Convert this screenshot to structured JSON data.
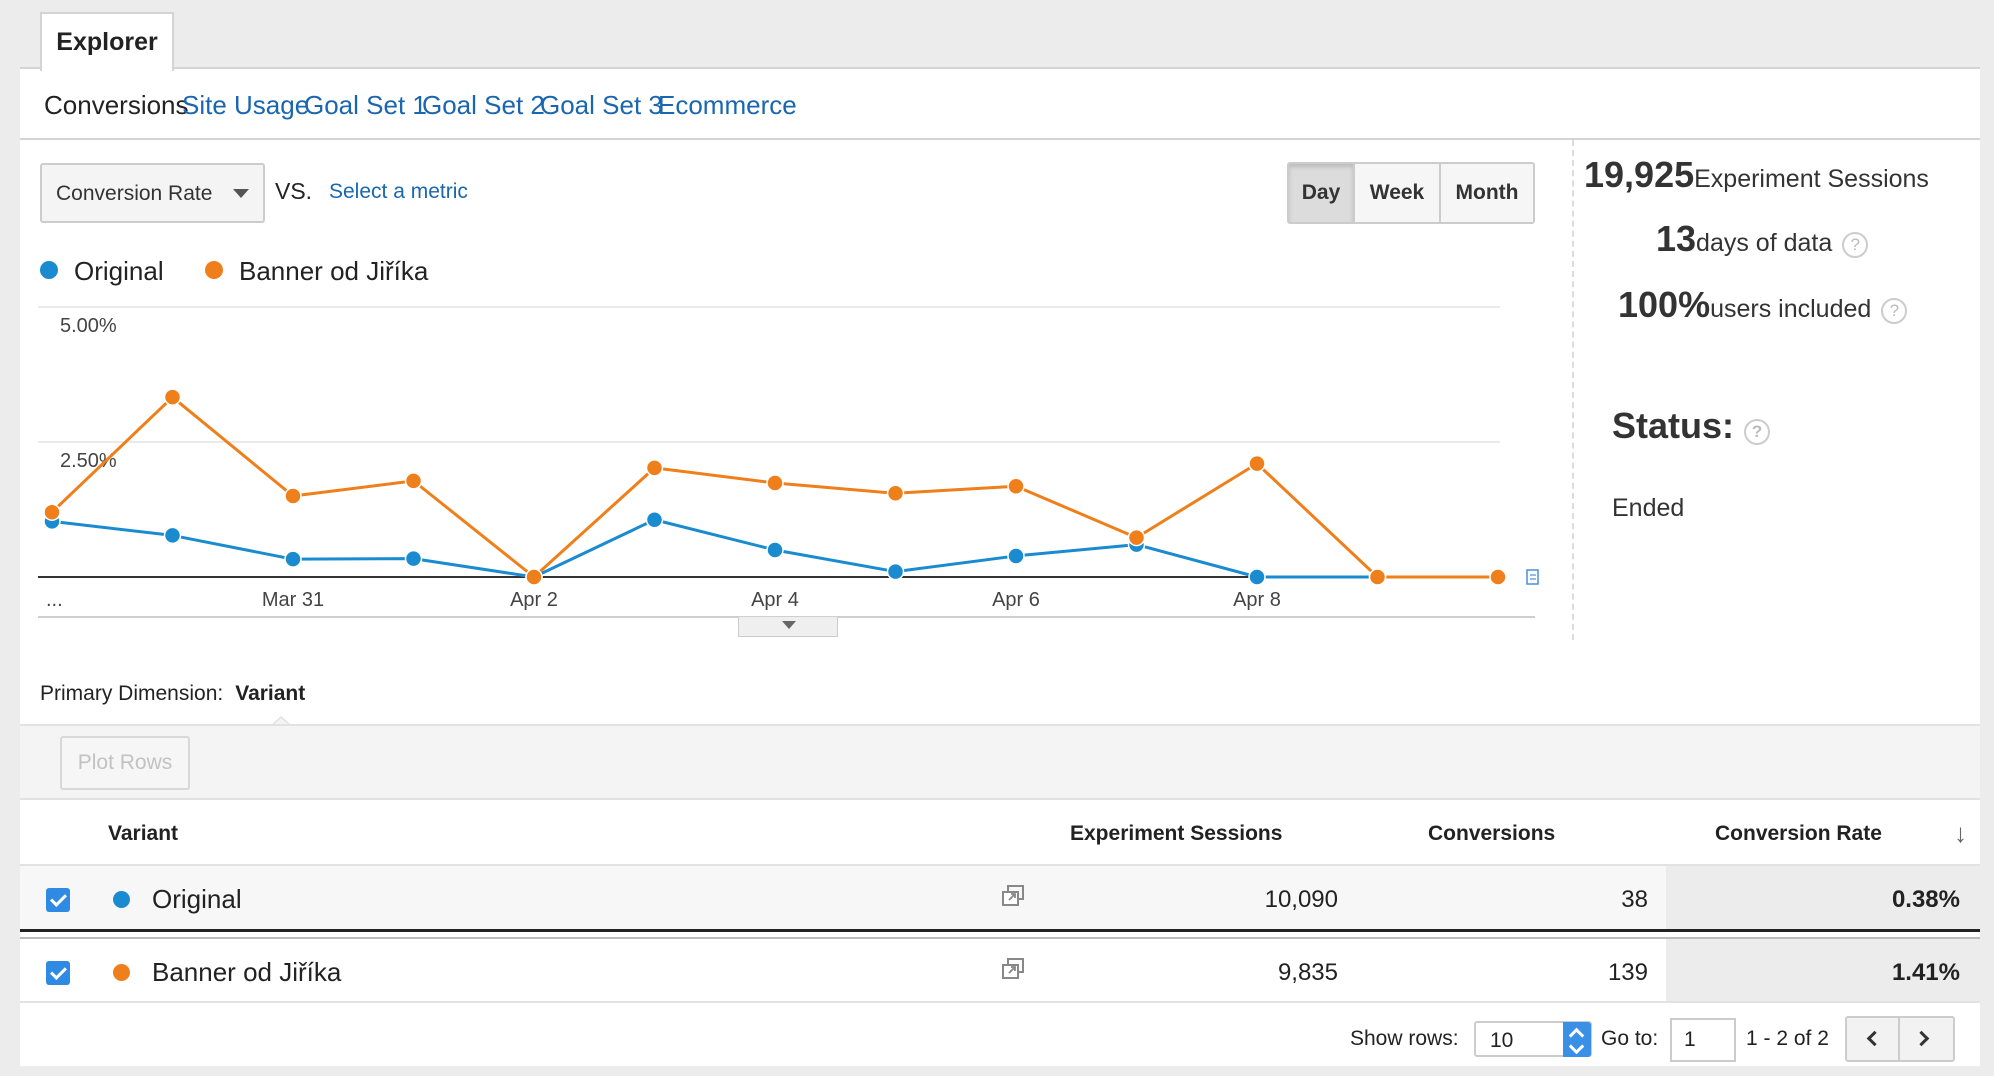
{
  "tab": {
    "label": "Explorer"
  },
  "subnav": {
    "items": [
      {
        "label": "Conversions",
        "active": true
      },
      {
        "label": "Site Usage",
        "active": false
      },
      {
        "label": "Goal Set 1",
        "active": false
      },
      {
        "label": "Goal Set 2",
        "active": false
      },
      {
        "label": "Goal Set 3",
        "active": false
      },
      {
        "label": "Ecommerce",
        "active": false
      }
    ]
  },
  "metric": {
    "selected": "Conversion Rate",
    "vs_label": "VS.",
    "select_metric_link": "Select a metric"
  },
  "time_toggle": {
    "options": [
      {
        "label": "Day",
        "active": true
      },
      {
        "label": "Week",
        "active": false
      },
      {
        "label": "Month",
        "active": false
      }
    ]
  },
  "stats": {
    "sessions_value": "19,925",
    "sessions_label": "Experiment Sessions",
    "days_value": "13",
    "days_label": "days of data",
    "users_value": "100%",
    "users_label": "users included",
    "help_glyph": "?"
  },
  "status": {
    "title": "Status:",
    "value": "Ended"
  },
  "colors": {
    "original": "#1b8bd0",
    "banner": "#ef7f1a",
    "accent": "#1a66b0",
    "checkbox": "#2f8ae3"
  },
  "chart_data": {
    "type": "line",
    "x": [
      "Mar 29",
      "Mar 30",
      "Mar 31",
      "Apr 1",
      "Apr 2",
      "Apr 3",
      "Apr 4",
      "Apr 5",
      "Apr 6",
      "Apr 7",
      "Apr 8",
      "Apr 9",
      "Apr 10"
    ],
    "x_tick_labels": [
      "...",
      "Mar 31",
      "Apr 2",
      "Apr 4",
      "Apr 6",
      "Apr 8"
    ],
    "x_tick_indices": [
      0,
      2,
      4,
      6,
      8,
      10
    ],
    "y_tick_labels": [
      "5.00%",
      "2.50%"
    ],
    "y_tick_values": [
      5.0,
      2.5
    ],
    "ylim": [
      0,
      5
    ],
    "series": [
      {
        "name": "Original",
        "color": "#1b8bd0",
        "values": [
          1.03,
          0.77,
          0.33,
          0.34,
          0.0,
          1.06,
          0.5,
          0.1,
          0.39,
          0.6,
          0.0,
          0.0,
          0.0
        ]
      },
      {
        "name": "Banner od Jiříka",
        "color": "#ef7f1a",
        "values": [
          1.2,
          3.33,
          1.5,
          1.78,
          0.0,
          2.02,
          1.74,
          1.55,
          1.68,
          0.73,
          2.1,
          0.0,
          0.0
        ]
      }
    ],
    "grid": true,
    "legend": "top-left"
  },
  "primary_dimension": {
    "label": "Primary Dimension:",
    "value": "Variant"
  },
  "toolbar": {
    "plot_rows_label": "Plot Rows"
  },
  "table": {
    "headers": {
      "variant": "Variant",
      "sessions": "Experiment Sessions",
      "conversions": "Conversions",
      "rate": "Conversion Rate"
    },
    "rows": [
      {
        "name": "Original",
        "sessions": "10,090",
        "conversions": "38",
        "rate": "0.38%"
      },
      {
        "name": "Banner od Jiříka",
        "sessions": "9,835",
        "conversions": "139",
        "rate": "1.41%"
      }
    ]
  },
  "pager": {
    "show_rows_label": "Show rows:",
    "show_rows_value": "10",
    "goto_label": "Go to:",
    "goto_value": "1",
    "range": "1 - 2 of 2"
  }
}
